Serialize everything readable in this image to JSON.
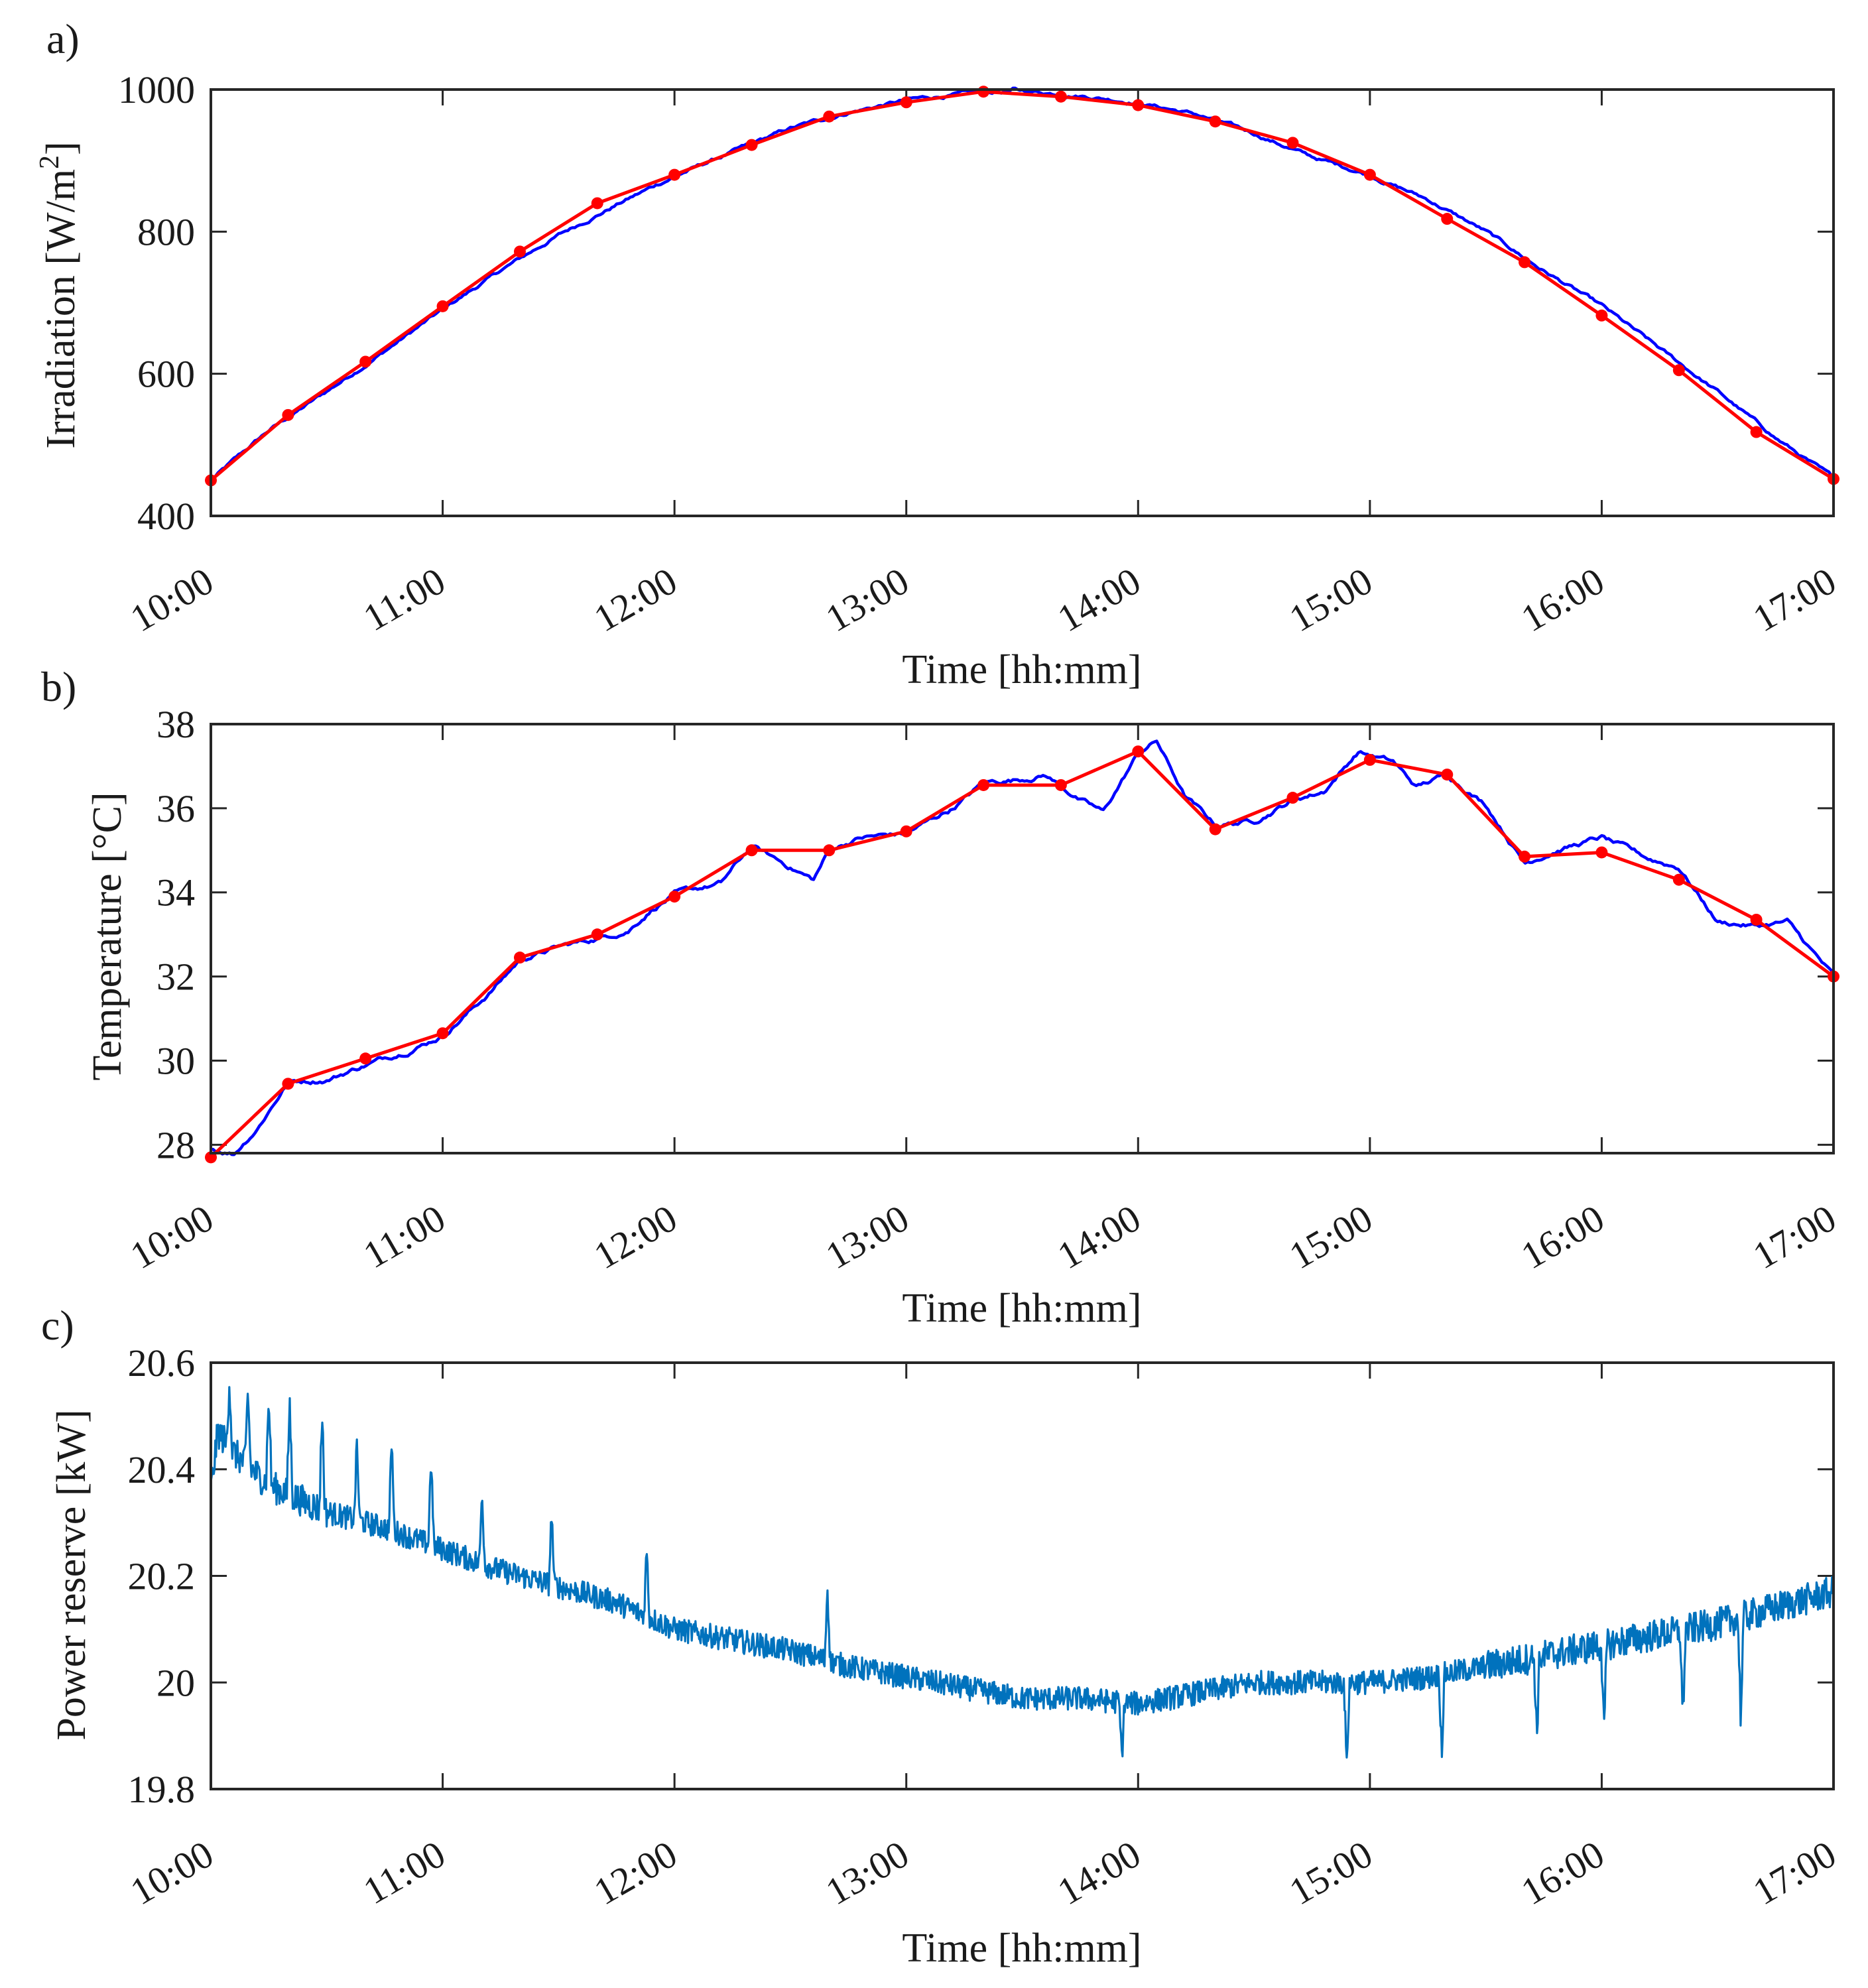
{
  "figure": {
    "xlabel": "Time [hh:mm]",
    "x_tick_labels": [
      "10:00",
      "11:00",
      "12:00",
      "13:00",
      "14:00",
      "15:00",
      "16:00",
      "17:00"
    ],
    "colors": {
      "measured": "#0000ff",
      "sampled": "#ff0000",
      "reserve": "#0072bd",
      "axis": "#262626"
    }
  },
  "chart_data": [
    {
      "panel": "a)",
      "type": "line",
      "ylabel_main": "Irradiation [W/m",
      "ylabel_sup": "2",
      "ylabel_end": "]",
      "xlabel": "Time [hh:mm]",
      "xlim_hours": [
        10,
        17
      ],
      "ylim": [
        400,
        1000
      ],
      "y_ticks": [
        400,
        600,
        800,
        1000
      ],
      "series": [
        {
          "name": "sampled",
          "style": "red line with markers",
          "x_hours": [
            10.0,
            10.333,
            10.667,
            11.0,
            11.333,
            11.667,
            12.0,
            12.333,
            12.667,
            13.0,
            13.333,
            13.667,
            14.0,
            14.333,
            14.667,
            15.0,
            15.333,
            15.667,
            16.0,
            16.333,
            16.667,
            17.0
          ],
          "values": [
            450,
            542,
            617,
            695,
            772,
            840,
            880,
            922,
            962,
            982,
            997,
            990,
            978,
            955,
            925,
            880,
            818,
            757,
            682,
            605,
            518,
            452
          ]
        },
        {
          "name": "measured",
          "style": "blue line",
          "x_hours": [
            10.0,
            10.25,
            10.5,
            10.75,
            11.0,
            11.25,
            11.5,
            11.75,
            12.0,
            12.25,
            12.5,
            12.75,
            13.0,
            13.25,
            13.5,
            13.75,
            14.0,
            14.25,
            14.5,
            14.75,
            15.0,
            15.25,
            15.5,
            15.75,
            16.0,
            16.25,
            16.5,
            16.75,
            17.0
          ],
          "values": [
            450,
            520,
            575,
            632,
            690,
            745,
            795,
            838,
            878,
            912,
            945,
            968,
            985,
            994,
            998,
            992,
            982,
            965,
            938,
            905,
            880,
            845,
            800,
            745,
            695,
            635,
            575,
            510,
            452
          ]
        }
      ]
    },
    {
      "panel": "b)",
      "type": "line",
      "ylabel": "Temperature [°C]",
      "xlabel": "Time [hh:mm]",
      "xlim_hours": [
        10,
        17
      ],
      "ylim": [
        27.8,
        38
      ],
      "y_ticks": [
        28,
        30,
        32,
        34,
        36,
        38
      ],
      "series": [
        {
          "name": "sampled",
          "style": "red line with markers",
          "x_hours": [
            10.0,
            10.333,
            10.667,
            11.0,
            11.333,
            11.667,
            12.0,
            12.333,
            12.667,
            13.0,
            13.333,
            13.667,
            14.0,
            14.333,
            14.667,
            15.0,
            15.333,
            15.667,
            16.0,
            16.333,
            16.667,
            17.0
          ],
          "values": [
            27.7,
            29.45,
            30.05,
            30.65,
            32.45,
            33.0,
            33.9,
            35.0,
            35.0,
            35.45,
            36.55,
            36.55,
            37.35,
            35.5,
            36.25,
            37.15,
            36.8,
            34.85,
            34.95,
            34.3,
            33.35,
            32.0
          ]
        },
        {
          "name": "measured",
          "style": "blue line",
          "x_hours": [
            10.0,
            10.1,
            10.2,
            10.333,
            10.5,
            10.667,
            10.85,
            11.0,
            11.2,
            11.333,
            11.5,
            11.667,
            11.8,
            11.9,
            12.0,
            12.2,
            12.333,
            12.5,
            12.6,
            12.667,
            12.8,
            13.0,
            13.2,
            13.333,
            13.5,
            13.6,
            13.75,
            13.85,
            14.0,
            14.08,
            14.2,
            14.333,
            14.5,
            14.667,
            14.8,
            14.95,
            15.1,
            15.2,
            15.333,
            15.5,
            15.667,
            15.8,
            16.0,
            16.2,
            16.333,
            16.5,
            16.667,
            16.8,
            17.0
          ],
          "values": [
            27.9,
            27.8,
            28.4,
            29.5,
            29.55,
            29.9,
            30.25,
            30.6,
            31.6,
            32.4,
            32.7,
            32.9,
            33.1,
            33.6,
            33.95,
            34.2,
            35.1,
            34.6,
            34.3,
            35.0,
            35.3,
            35.4,
            36.0,
            36.6,
            36.7,
            36.8,
            36.2,
            35.9,
            37.3,
            37.6,
            36.3,
            35.6,
            35.7,
            36.2,
            36.4,
            37.35,
            37.1,
            36.5,
            36.8,
            36.1,
            34.7,
            35.0,
            35.3,
            34.8,
            34.6,
            33.3,
            33.2,
            33.3,
            32.0
          ]
        }
      ]
    },
    {
      "panel": "c)",
      "type": "line",
      "ylabel": "Power reserve [kW]",
      "xlabel": "Time [hh:mm]",
      "xlim_hours": [
        10,
        17
      ],
      "ylim": [
        19.8,
        20.6
      ],
      "y_ticks": [
        19.8,
        20.0,
        20.2,
        20.4,
        20.6
      ],
      "y_tick_labels": [
        "19.8",
        "20",
        "20.2",
        "20.4",
        "20.6"
      ],
      "series": [
        {
          "name": "power reserve",
          "style": "noisy line",
          "x_hours": [
            10.0,
            10.03,
            10.1,
            10.25,
            10.5,
            10.75,
            11.0,
            11.25,
            11.5,
            11.75,
            12.0,
            12.25,
            12.5,
            12.75,
            13.0,
            13.25,
            13.5,
            13.75,
            14.0,
            14.25,
            14.5,
            14.75,
            15.0,
            15.25,
            15.5,
            15.75,
            16.0,
            16.25,
            16.5,
            16.75,
            17.0
          ],
          "values": [
            20.36,
            20.47,
            20.43,
            20.37,
            20.32,
            20.29,
            20.25,
            20.21,
            20.18,
            20.15,
            20.1,
            20.08,
            20.06,
            20.03,
            20.01,
            19.99,
            19.97,
            19.97,
            19.96,
            19.98,
            20.0,
            20.0,
            20.0,
            20.01,
            20.03,
            20.05,
            20.07,
            20.09,
            20.11,
            20.14,
            20.17
          ],
          "spikes": [
            {
              "x_hours": 10.08,
              "value": 20.57
            },
            {
              "x_hours": 10.16,
              "value": 20.55
            },
            {
              "x_hours": 10.25,
              "value": 20.54
            },
            {
              "x_hours": 10.34,
              "value": 20.53
            },
            {
              "x_hours": 10.48,
              "value": 20.51
            },
            {
              "x_hours": 10.63,
              "value": 20.45
            },
            {
              "x_hours": 10.78,
              "value": 20.46
            },
            {
              "x_hours": 10.95,
              "value": 20.43
            },
            {
              "x_hours": 11.17,
              "value": 20.36
            },
            {
              "x_hours": 11.47,
              "value": 20.32
            },
            {
              "x_hours": 11.88,
              "value": 20.25
            },
            {
              "x_hours": 12.66,
              "value": 20.18
            },
            {
              "x_hours": 13.93,
              "value": 19.86
            },
            {
              "x_hours": 14.9,
              "value": 19.84
            },
            {
              "x_hours": 15.31,
              "value": 19.87
            },
            {
              "x_hours": 15.72,
              "value": 19.9
            },
            {
              "x_hours": 16.01,
              "value": 19.9
            },
            {
              "x_hours": 16.35,
              "value": 19.93
            },
            {
              "x_hours": 16.6,
              "value": 19.93
            }
          ]
        }
      ]
    }
  ]
}
